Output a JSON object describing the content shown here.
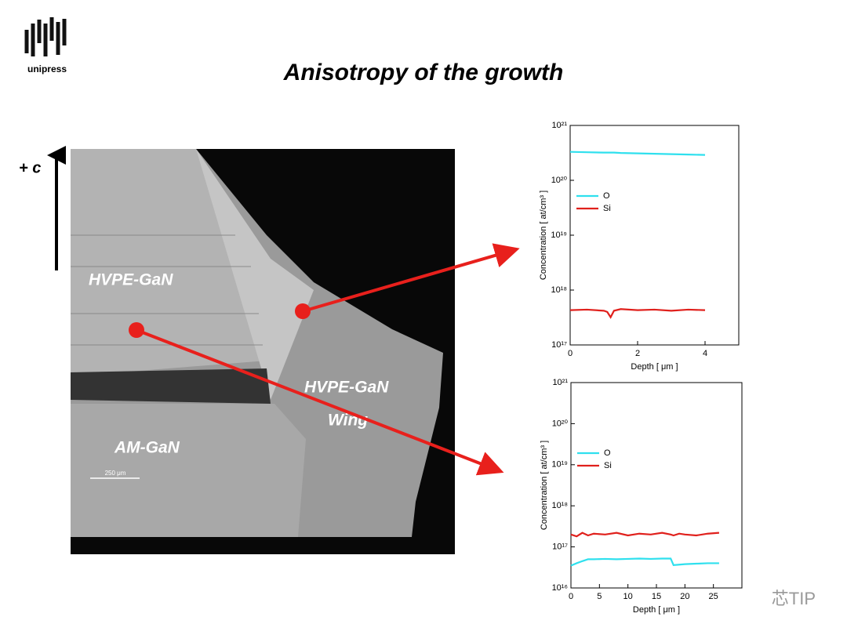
{
  "header": {
    "logo_text": "unipress",
    "title": "Anisotropy of the growth"
  },
  "image": {
    "axis_label": "+ c",
    "labels": [
      "HVPE-GaN",
      "HVPE-GaN",
      "Wing",
      "AM-GaN"
    ],
    "scale_bar": "250 μm"
  },
  "chart_data": [
    {
      "type": "line",
      "log_y": true,
      "legend": "upper left",
      "x_label": "Depth [ μm ]",
      "y_label": "Concentration [ at/cm³ ]",
      "x": [
        0,
        0.5,
        1,
        1.1,
        1.2,
        1.3,
        1.5,
        2,
        2.5,
        3,
        3.5,
        4
      ],
      "series": [
        {
          "name": "O",
          "color": "#2fe0ee",
          "values": [
            3.3e+20,
            3.25e+20,
            3.2e+20,
            3.2e+20,
            3.2e+20,
            3.2e+20,
            3.15e+20,
            3.1e+20,
            3.05e+20,
            3e+20,
            2.95e+20,
            2.9e+20
          ]
        },
        {
          "name": "Si",
          "color": "#e0201c",
          "values": [
            4.3e+17,
            4.4e+17,
            4.2e+17,
            4e+17,
            3.2e+17,
            4.2e+17,
            4.5e+17,
            4.3e+17,
            4.4e+17,
            4.2e+17,
            4.4e+17,
            4.3e+17
          ]
        }
      ],
      "xlim": [
        0,
        5
      ],
      "xticks": [
        0,
        2,
        4
      ],
      "ylim": [
        1e+17,
        1e+21
      ],
      "yticks": [
        {
          "value": 1e+17,
          "label": "10¹⁷"
        },
        {
          "value": 1e+18,
          "label": "10¹⁸"
        },
        {
          "value": 1e+19,
          "label": "10¹⁹"
        },
        {
          "value": 1e+20,
          "label": "10²⁰"
        },
        {
          "value": 1e+21,
          "label": "10²¹"
        }
      ]
    },
    {
      "type": "line",
      "log_y": true,
      "legend": "upper left",
      "x_label": "Depth [ μm ]",
      "y_label": "Concentration [ at/cm³ ]",
      "x": [
        0,
        1,
        2,
        3,
        4,
        6,
        8,
        10,
        12,
        14,
        16,
        17.5,
        18,
        19,
        20,
        22,
        24,
        26
      ],
      "series": [
        {
          "name": "O",
          "color": "#2fe0ee",
          "values": [
            3.5e+16,
            4e+16,
            4.5e+16,
            5e+16,
            5e+16,
            5.1e+16,
            5e+16,
            5.1e+16,
            5.2e+16,
            5.1e+16,
            5.2e+16,
            5.2e+16,
            3.6e+16,
            3.7e+16,
            3.8e+16,
            3.9e+16,
            4e+16,
            4e+16
          ]
        },
        {
          "name": "Si",
          "color": "#e0201c",
          "values": [
            2e+17,
            1.8e+17,
            2.2e+17,
            1.9e+17,
            2.1e+17,
            2e+17,
            2.2e+17,
            1.9e+17,
            2.1e+17,
            2e+17,
            2.2e+17,
            2e+17,
            1.9e+17,
            2.1e+17,
            2e+17,
            1.9e+17,
            2.1e+17,
            2.2e+17
          ]
        }
      ],
      "xlim": [
        0,
        30
      ],
      "xticks": [
        0,
        5,
        10,
        15,
        20,
        25
      ],
      "ylim": [
        1e+16,
        1e+21
      ],
      "yticks": [
        {
          "value": 1e+16,
          "label": "10¹⁶"
        },
        {
          "value": 1e+17,
          "label": "10¹⁷"
        },
        {
          "value": 1e+18,
          "label": "10¹⁸"
        },
        {
          "value": 1e+19,
          "label": "10¹⁹"
        },
        {
          "value": 1e+20,
          "label": "10²⁰"
        },
        {
          "value": 1e+21,
          "label": "10²¹"
        }
      ]
    }
  ],
  "watermark": "芯TIP"
}
